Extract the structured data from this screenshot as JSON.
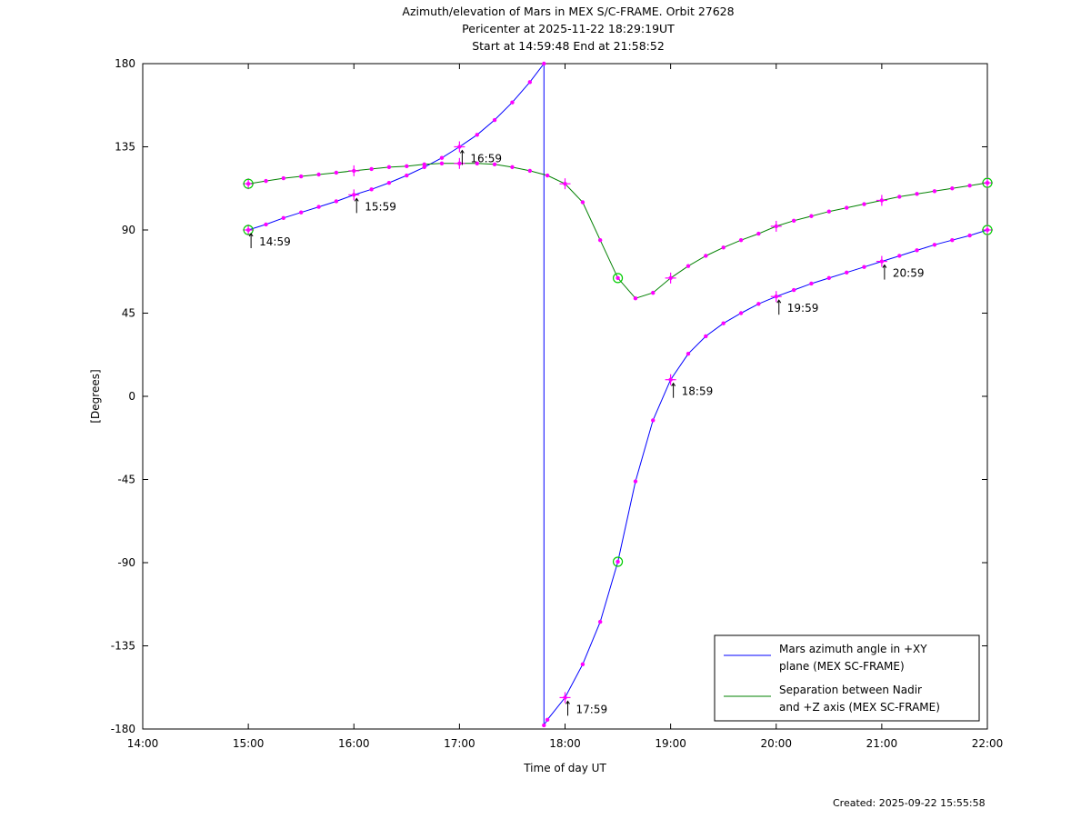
{
  "chart_data": {
    "type": "line",
    "title": [
      "Azimuth/elevation of Mars in MEX S/C-FRAME.  Orbit 27628",
      "Pericenter at 2025-11-22 18:29:19UT",
      "Start at 14:59:48 End at 21:58:52"
    ],
    "xlabel": "Time of day UT",
    "ylabel": "[Degrees]",
    "xlim": [
      14.0,
      22.0
    ],
    "ylim": [
      -180,
      180
    ],
    "x_ticks": [
      {
        "v": 14,
        "label": "14:00"
      },
      {
        "v": 15,
        "label": "15:00"
      },
      {
        "v": 16,
        "label": "16:00"
      },
      {
        "v": 17,
        "label": "17:00"
      },
      {
        "v": 18,
        "label": "18:00"
      },
      {
        "v": 19,
        "label": "19:00"
      },
      {
        "v": 20,
        "label": "20:00"
      },
      {
        "v": 21,
        "label": "21:00"
      },
      {
        "v": 22,
        "label": "22:00"
      }
    ],
    "y_ticks": [
      {
        "v": 180,
        "label": "180"
      },
      {
        "v": 135,
        "label": "135"
      },
      {
        "v": 90,
        "label": "90"
      },
      {
        "v": 45,
        "label": "45"
      },
      {
        "v": 0,
        "label": "0"
      },
      {
        "v": -45,
        "label": "-45"
      },
      {
        "v": -90,
        "label": "-90"
      },
      {
        "v": -135,
        "label": "-135"
      },
      {
        "v": -180,
        "label": "-180"
      }
    ],
    "legend_position": "bottom-right",
    "series": [
      {
        "name": "Mars azimuth angle in +XY plane (MEX SC-FRAME)",
        "legend_lines": [
          "Mars azimuth angle in +XY",
          "plane (MEX SC-FRAME)"
        ],
        "color": "#0000ff",
        "points": [
          [
            15.0,
            90
          ],
          [
            15.167,
            93
          ],
          [
            15.333,
            96.5
          ],
          [
            15.5,
            99.5
          ],
          [
            15.667,
            102.5
          ],
          [
            15.833,
            105.5
          ],
          [
            16.0,
            109
          ],
          [
            16.167,
            112
          ],
          [
            16.333,
            115.5
          ],
          [
            16.5,
            119.5
          ],
          [
            16.667,
            124
          ],
          [
            16.833,
            129
          ],
          [
            17.0,
            135
          ],
          [
            17.167,
            141.5
          ],
          [
            17.333,
            149.5
          ],
          [
            17.5,
            159
          ],
          [
            17.667,
            170
          ],
          [
            17.8,
            180
          ],
          [
            17.8,
            -178
          ],
          [
            17.833,
            -175
          ],
          [
            18.0,
            -163
          ],
          [
            18.167,
            -145
          ],
          [
            18.333,
            -122
          ],
          [
            18.5,
            -89.5
          ],
          [
            18.667,
            -46
          ],
          [
            18.833,
            -13
          ],
          [
            19.0,
            9
          ],
          [
            19.167,
            23
          ],
          [
            19.333,
            32.5
          ],
          [
            19.5,
            39.5
          ],
          [
            19.667,
            45
          ],
          [
            19.833,
            50
          ],
          [
            20.0,
            54
          ],
          [
            20.167,
            57.5
          ],
          [
            20.333,
            61
          ],
          [
            20.5,
            64
          ],
          [
            20.667,
            67
          ],
          [
            20.833,
            70
          ],
          [
            21.0,
            73
          ],
          [
            21.167,
            76
          ],
          [
            21.333,
            79
          ],
          [
            21.5,
            82
          ],
          [
            21.667,
            84.5
          ],
          [
            21.833,
            87
          ],
          [
            22.0,
            90
          ]
        ]
      },
      {
        "name": "Separation between Nadir and +Z axis (MEX SC-FRAME)",
        "legend_lines": [
          "Separation between Nadir",
          "and +Z axis (MEX SC-FRAME)"
        ],
        "color": "#008000",
        "points": [
          [
            15.0,
            115
          ],
          [
            15.167,
            116.5
          ],
          [
            15.333,
            118
          ],
          [
            15.5,
            119
          ],
          [
            15.667,
            120
          ],
          [
            15.833,
            121
          ],
          [
            16.0,
            122
          ],
          [
            16.167,
            123
          ],
          [
            16.333,
            124
          ],
          [
            16.5,
            124.5
          ],
          [
            16.667,
            125.5
          ],
          [
            16.833,
            126
          ],
          [
            17.0,
            126
          ],
          [
            17.167,
            126
          ],
          [
            17.333,
            125.5
          ],
          [
            17.5,
            124
          ],
          [
            17.667,
            122
          ],
          [
            17.833,
            119.5
          ],
          [
            18.0,
            115
          ],
          [
            18.167,
            105
          ],
          [
            18.333,
            84.5
          ],
          [
            18.5,
            64
          ],
          [
            18.667,
            53
          ],
          [
            18.833,
            56
          ],
          [
            19.0,
            64
          ],
          [
            19.167,
            70.5
          ],
          [
            19.333,
            76
          ],
          [
            19.5,
            80.5
          ],
          [
            19.667,
            84.5
          ],
          [
            19.833,
            88
          ],
          [
            20.0,
            92
          ],
          [
            20.167,
            95
          ],
          [
            20.333,
            97.5
          ],
          [
            20.5,
            100
          ],
          [
            20.667,
            102
          ],
          [
            20.833,
            104
          ],
          [
            21.0,
            106
          ],
          [
            21.167,
            108
          ],
          [
            21.333,
            109.5
          ],
          [
            21.5,
            111
          ],
          [
            21.667,
            112.5
          ],
          [
            21.833,
            114
          ],
          [
            22.0,
            115.5
          ]
        ]
      }
    ],
    "annotations": [
      {
        "x": 15.0,
        "y": 90,
        "label": "14:59"
      },
      {
        "x": 16.0,
        "y": 109,
        "label": "15:59"
      },
      {
        "x": 17.0,
        "y": 135,
        "label": "16:59"
      },
      {
        "x": 18.0,
        "y": -163,
        "label": "17:59"
      },
      {
        "x": 19.0,
        "y": 9,
        "label": "18:59"
      },
      {
        "x": 20.0,
        "y": 54,
        "label": "19:59"
      },
      {
        "x": 21.0,
        "y": 73,
        "label": "20:59"
      }
    ],
    "plus_markers": [
      [
        15.0,
        90
      ],
      [
        16.0,
        109
      ],
      [
        17.0,
        135
      ],
      [
        18.0,
        -163
      ],
      [
        19.0,
        9
      ],
      [
        20.0,
        54
      ],
      [
        21.0,
        73
      ],
      [
        22.0,
        90
      ],
      [
        15.0,
        115
      ],
      [
        16.0,
        122
      ],
      [
        17.0,
        126
      ],
      [
        18.0,
        115
      ],
      [
        19.0,
        64
      ],
      [
        20.0,
        92
      ],
      [
        21.0,
        106
      ],
      [
        22.0,
        115.5
      ]
    ],
    "circle_markers": [
      [
        15.0,
        90
      ],
      [
        15.0,
        115
      ],
      [
        18.5,
        -89.5
      ],
      [
        18.5,
        64
      ],
      [
        22.0,
        90
      ],
      [
        22.0,
        115.5
      ]
    ],
    "marker_color": "#ff00ff",
    "circle_color": "#00cc00"
  },
  "footer": {
    "created": "Created: 2025-09-22 15:55:58"
  }
}
